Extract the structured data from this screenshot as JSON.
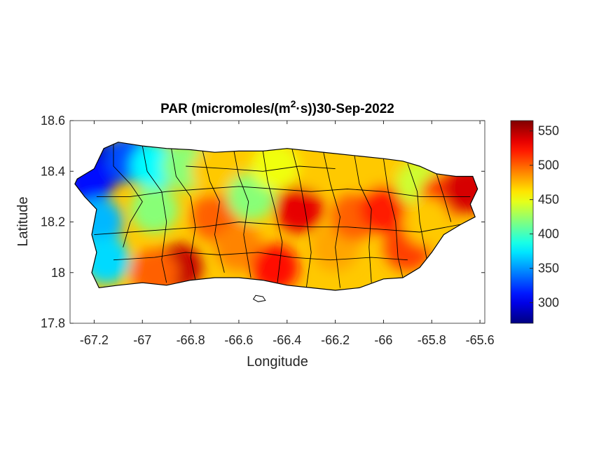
{
  "chart_data": {
    "type": "heatmap",
    "title": {
      "prefix": "PAR (micromoles/(m",
      "superscript": "2",
      "suffix": "·s))30-Sep-2022"
    },
    "xlabel": "Longitude",
    "ylabel": "Latitude",
    "xlim": [
      -67.3,
      -65.58
    ],
    "ylim": [
      17.8,
      18.6
    ],
    "xticks": [
      -67.2,
      -67,
      -66.8,
      -66.6,
      -66.4,
      -66.2,
      -66,
      -65.8,
      -65.6
    ],
    "xtick_labels": [
      "-67.2",
      "-67",
      "-66.8",
      "-66.6",
      "-66.4",
      "-66.2",
      "-66",
      "-65.8",
      "-65.6"
    ],
    "yticks": [
      17.8,
      18,
      18.2,
      18.4,
      18.6
    ],
    "ytick_labels": [
      "17.8",
      "18",
      "18.2",
      "18.4",
      "18.6"
    ],
    "colorbar": {
      "colormap": "jet",
      "clim": [
        270,
        565
      ],
      "ticks": [
        300,
        350,
        400,
        450,
        500,
        550
      ],
      "tick_labels": [
        "300",
        "350",
        "400",
        "450",
        "500",
        "550"
      ]
    },
    "boundary_color": "#000000",
    "regional_values": [
      {
        "lon": -67.15,
        "lat": 18.43,
        "value": 290
      },
      {
        "lon": -67.22,
        "lat": 18.36,
        "value": 310
      },
      {
        "lon": -67.05,
        "lat": 18.45,
        "value": 330
      },
      {
        "lon": -67.18,
        "lat": 18.2,
        "value": 360
      },
      {
        "lon": -67.15,
        "lat": 18.05,
        "value": 370
      },
      {
        "lon": -66.95,
        "lat": 18.42,
        "value": 380
      },
      {
        "lon": -66.95,
        "lat": 18.25,
        "value": 420
      },
      {
        "lon": -66.82,
        "lat": 18.42,
        "value": 420
      },
      {
        "lon": -66.85,
        "lat": 18.02,
        "value": 545
      },
      {
        "lon": -66.95,
        "lat": 18.0,
        "value": 500
      },
      {
        "lon": -66.7,
        "lat": 18.22,
        "value": 500
      },
      {
        "lon": -66.7,
        "lat": 18.4,
        "value": 470
      },
      {
        "lon": -66.55,
        "lat": 18.3,
        "value": 420
      },
      {
        "lon": -66.6,
        "lat": 18.1,
        "value": 490
      },
      {
        "lon": -66.45,
        "lat": 18.02,
        "value": 525
      },
      {
        "lon": -66.35,
        "lat": 18.25,
        "value": 535
      },
      {
        "lon": -66.3,
        "lat": 18.42,
        "value": 470
      },
      {
        "lon": -66.2,
        "lat": 18.1,
        "value": 480
      },
      {
        "lon": -66.12,
        "lat": 18.22,
        "value": 500
      },
      {
        "lon": -66.05,
        "lat": 18.4,
        "value": 470
      },
      {
        "lon": -66.0,
        "lat": 18.25,
        "value": 520
      },
      {
        "lon": -65.9,
        "lat": 18.1,
        "value": 510
      },
      {
        "lon": -65.85,
        "lat": 18.35,
        "value": 440
      },
      {
        "lon": -65.75,
        "lat": 18.3,
        "value": 510
      },
      {
        "lon": -65.65,
        "lat": 18.33,
        "value": 540
      },
      {
        "lon": -65.82,
        "lat": 18.2,
        "value": 470
      },
      {
        "lon": -66.45,
        "lat": 18.42,
        "value": 450
      }
    ]
  }
}
